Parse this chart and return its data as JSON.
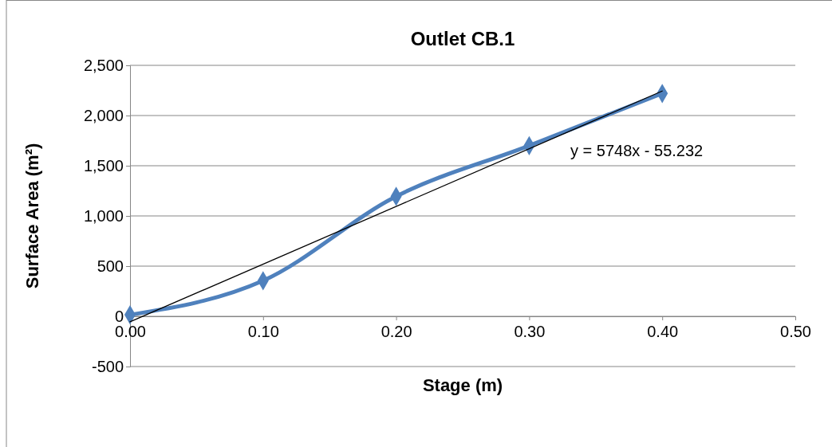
{
  "chart_data": {
    "type": "line",
    "title": "Outlet CB.1",
    "xlabel": "Stage (m)",
    "ylabel": "Surface Area (m²)",
    "x": [
      0,
      0.1,
      0.2,
      0.3,
      0.4
    ],
    "series": [
      {
        "color": "#4f81bd",
        "values": [
          15,
          355,
          1195,
          1700,
          2220
        ],
        "marker": "diamond"
      },
      {
        "color": "#000000",
        "x": [
          0,
          0.4
        ],
        "values": [
          -55,
          2244
        ],
        "marker": "none"
      }
    ],
    "xlim": [
      0,
      0.5
    ],
    "xticks": [
      {
        "value": 0,
        "label": "0.00"
      },
      {
        "value": 0.1,
        "label": "0.10"
      },
      {
        "value": 0.2,
        "label": "0.20"
      },
      {
        "value": 0.3,
        "label": "0.30"
      },
      {
        "value": 0.4,
        "label": "0.40"
      },
      {
        "value": 0.5,
        "label": "0.50"
      }
    ],
    "ylim": [
      -500,
      2500
    ],
    "yticks": [
      -500,
      0,
      500,
      {
        "value": 1000,
        "label": "1,000"
      },
      {
        "value": 1500,
        "label": "1,500"
      },
      {
        "value": 2000,
        "label": "2,000"
      },
      {
        "value": 2500,
        "label": "2,500"
      }
    ],
    "grid": "y",
    "annotations": [
      "y = 5748x - 55.232"
    ]
  }
}
